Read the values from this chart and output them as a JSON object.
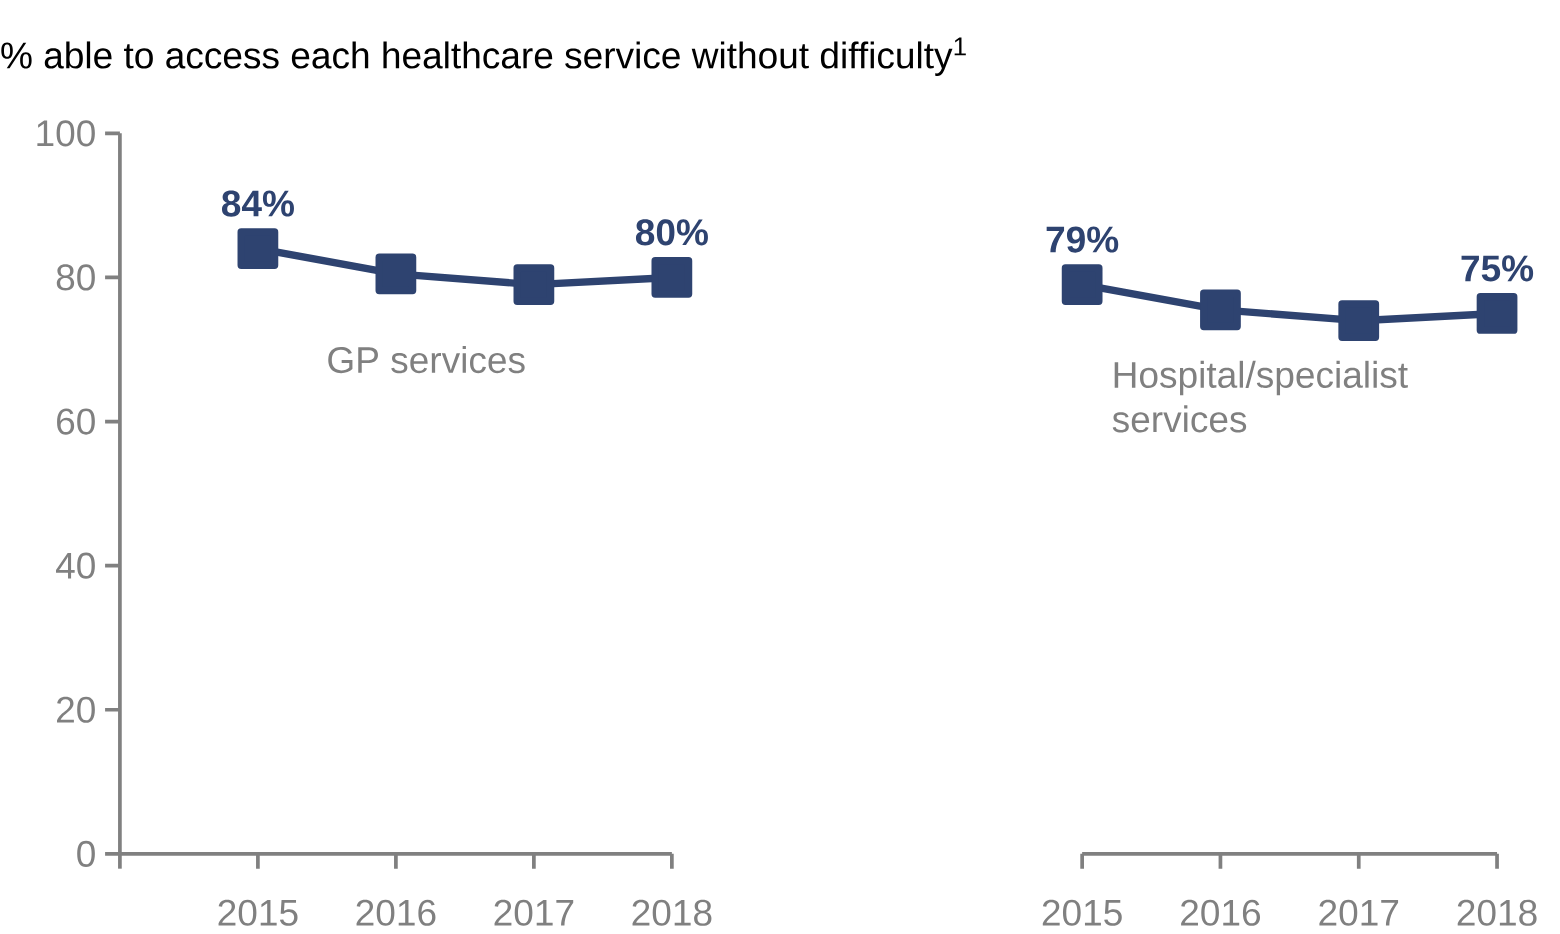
{
  "chart_data": [
    {
      "type": "line",
      "title": "% able to access each healthcare service without difficulty$^{1}$",
      "categories": [
        "2015",
        "2016",
        "2017",
        "2018"
      ],
      "ylim": [
        0,
        100
      ],
      "yticks": [
        0,
        20,
        40,
        60,
        80,
        100
      ],
      "grid": false,
      "legend": false,
      "marker": "square",
      "line_style": "solid",
      "series": [
        {
          "name": "GP services",
          "color": "#2e4370",
          "values": [
            84,
            80.5,
            79,
            80
          ],
          "value_labels": [
            "84%",
            null,
            null,
            "80%"
          ]
        }
      ]
    },
    {
      "type": "line",
      "categories": [
        "2015",
        "2016",
        "2017",
        "2018"
      ],
      "ylim": [
        0,
        100
      ],
      "tick_labels": "x",
      "grid": false,
      "legend": false,
      "marker": "square",
      "line_style": "solid",
      "series": [
        {
          "name": "Hospital/specialist services",
          "color": "#2e4370",
          "values": [
            79,
            75.5,
            74,
            75
          ],
          "value_labels": [
            "79%",
            null,
            null,
            "75%"
          ]
        }
      ]
    }
  ]
}
